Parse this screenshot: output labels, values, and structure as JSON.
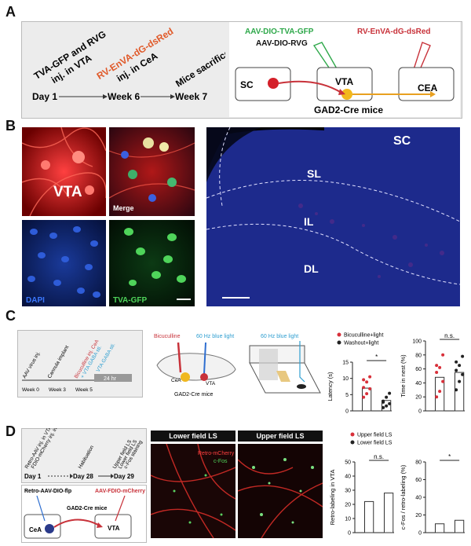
{
  "panels": {
    "a": "A",
    "b": "B",
    "c": "C",
    "d": "D"
  },
  "a": {
    "timeline": {
      "day1": "Day 1",
      "week6": "Week 6",
      "week7": "Week 7",
      "inj1_l1": "TVA-GFP and RVG",
      "inj1_l2": "inj. in VTA",
      "inj2_l1": "RV-EnVA-dG-dsRed",
      "inj2_l2": "inj. in CeA",
      "sac": "Mice sacrificed"
    },
    "schema": {
      "virus1": "AAV-DIO-TVA-GFP",
      "virus2": "AAV-DIO-RVG",
      "virus3": "RV-EnVA-dG-dsRed",
      "sc": "SC",
      "vta": "VTA",
      "cea": "CEA",
      "mice": "GAD2-Cre mice"
    },
    "colors": {
      "green": "#2ea84a",
      "red": "#c8323a",
      "orange": "#e8a020"
    }
  },
  "b": {
    "vta": "VTA",
    "merge": "Merge",
    "dapi": "DAPI",
    "tva": "TVA-GFP",
    "sc": "SC",
    "sl": "SL",
    "il": "IL",
    "dl": "DL"
  },
  "c": {
    "timeline": {
      "w0": "Week 0",
      "w3": "Week 3",
      "w5": "Week 5",
      "aav": "AAV virus inj.",
      "cannula": "Cannula implant",
      "bic": "Bicuculline inj. CeA",
      "vtagaba": "+ VTA GABA sti.",
      "vtagaba2": "VTA GABA sti.",
      "h24": "24 hr"
    },
    "schema": {
      "bic": "Bicuculline",
      "light": "60 Hz blue light",
      "cea": "CeA",
      "vta": "VTA",
      "mice": "GAD2-Cre mice",
      "light2": "60 Hz blue light"
    },
    "legend": {
      "a": "Bicuculline+light",
      "b": "Washout+light"
    },
    "chart1": {
      "ylabel": "Latency (s)",
      "ticks": [
        "0",
        "5",
        "10",
        "15"
      ],
      "sig": "*"
    },
    "chart2": {
      "ylabel": "Time in nest (%)",
      "ticks": [
        "0",
        "20",
        "40",
        "60",
        "80",
        "100"
      ],
      "sig": "n.s."
    }
  },
  "d": {
    "timeline": {
      "d1": "Day 1",
      "d28": "Day 28",
      "d29": "Day 29",
      "inj_l1": "Retro-AAV inj. in VTA",
      "inj_l2": "FDIO-mCherry inj. in CeA",
      "hab": "Habituation",
      "ls1": "Upper field LS",
      "ls2": "Lower field LS",
      "cfos": "c-Fos staining"
    },
    "schema": {
      "v1": "Retro-AAV-DIO-flp",
      "v2": "AAV-FDIO-mCherry",
      "mice": "GAD2-Cre mice",
      "cea": "CeA",
      "vta": "VTA"
    },
    "img": {
      "lower": "Lower field LS",
      "upper": "Upper field LS",
      "mch": "Retro-mCherry",
      "cfos": "c-Fos"
    },
    "legend": {
      "a": "Upper field LS",
      "b": "Lower field LS"
    },
    "chart1": {
      "ylabel": "Retro-labeling in VTA",
      "ticks": [
        "0",
        "10",
        "20",
        "30",
        "40",
        "50"
      ],
      "sig": "n.s."
    },
    "chart2": {
      "ylabel": "c-Fos / retro-labeling (%)",
      "ticks": [
        "0",
        "20",
        "40",
        "60",
        "80"
      ],
      "sig": "*"
    }
  },
  "chart_data": [
    {
      "type": "bar",
      "title": "",
      "ylabel": "Latency (s)",
      "ylim": [
        0,
        15
      ],
      "categories": [
        "Bicuculline+light",
        "Washout+light"
      ],
      "values": [
        7.0,
        3.2
      ],
      "points": [
        [
          4.2,
          5.3,
          6.8,
          7.2,
          8.9,
          10.5,
          9.6
        ],
        [
          1.0,
          1.5,
          2.2,
          3.0,
          4.2,
          5.4,
          2.7
        ]
      ]
    },
    {
      "type": "bar",
      "title": "",
      "ylabel": "Time in nest (%)",
      "ylim": [
        0,
        100
      ],
      "categories": [
        "Bicuculline+light",
        "Washout+light"
      ],
      "values": [
        48,
        55
      ],
      "points": [
        [
          20,
          28,
          42,
          55,
          62,
          80,
          65
        ],
        [
          30,
          42,
          52,
          58,
          65,
          78,
          70
        ]
      ]
    },
    {
      "type": "bar",
      "title": "",
      "ylabel": "Retro-labeling in VTA",
      "ylim": [
        0,
        50
      ],
      "categories": [
        "Upper field LS",
        "Lower field LS"
      ],
      "values": [
        22,
        28
      ]
    },
    {
      "type": "bar",
      "title": "",
      "ylabel": "c-Fos / retro-labeling (%)",
      "ylim": [
        0,
        80
      ],
      "categories": [
        "Upper field LS",
        "Lower field LS"
      ],
      "values": [
        10,
        14
      ]
    }
  ]
}
